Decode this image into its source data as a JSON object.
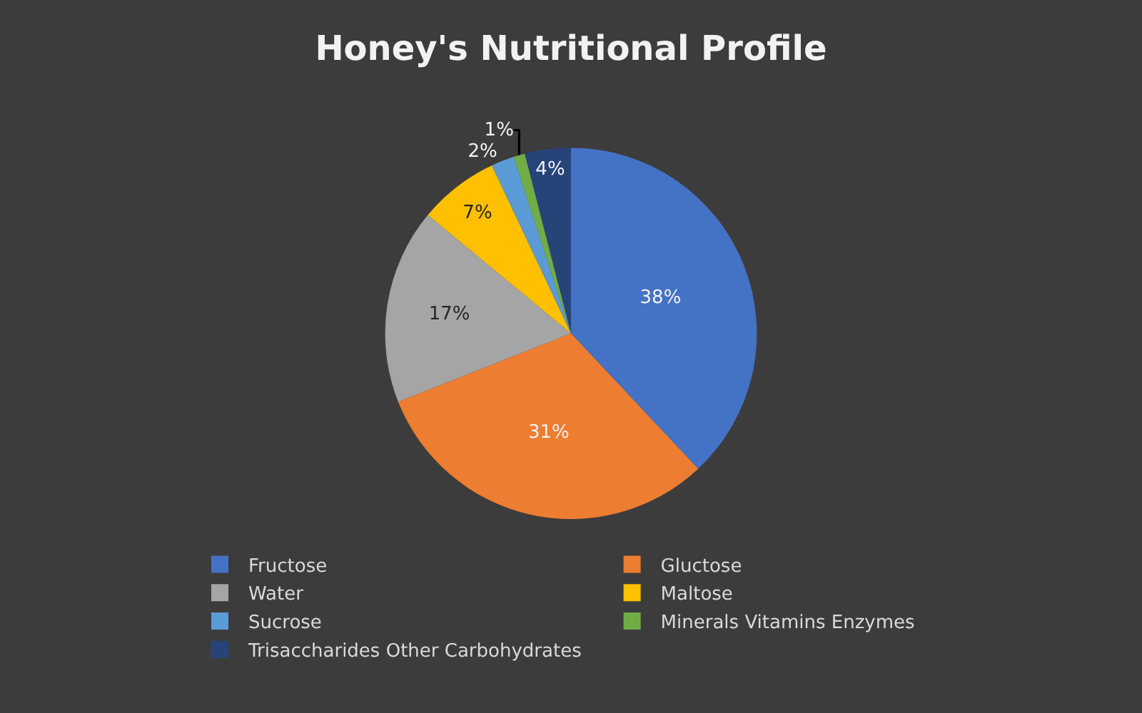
{
  "chart_data": {
    "type": "pie",
    "title": "Honey's Nutritional Profile",
    "categories": [
      "Fructose",
      "Gluctose",
      "Water",
      "Maltose",
      "Sucrose",
      "Minerals Vitamins Enzymes",
      "Trisaccharides Other Carbohydrates"
    ],
    "values": [
      38,
      31,
      17,
      7,
      2,
      1,
      4
    ],
    "value_labels": [
      "38%",
      "31%",
      "17%",
      "7%",
      "2%",
      "1%",
      "4%"
    ],
    "colors": [
      "#4472c4",
      "#ed7d31",
      "#a5a5a5",
      "#ffc000",
      "#5b9bd5",
      "#70ad47",
      "#264478"
    ],
    "legend": "bottom"
  }
}
